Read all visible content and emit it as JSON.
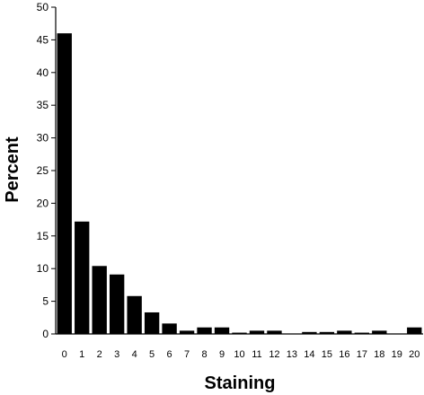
{
  "chart_data": {
    "type": "bar",
    "title": "",
    "xlabel": "Staining",
    "ylabel": "Percent",
    "ylim": [
      0,
      50
    ],
    "yticks": [
      "0",
      "5",
      "10",
      "15",
      "20",
      "25",
      "30",
      "35",
      "40",
      "45",
      "50"
    ],
    "categories": [
      "0",
      "1",
      "2",
      "3",
      "4",
      "5",
      "6",
      "7",
      "8",
      "9",
      "10",
      "11",
      "12",
      "13",
      "14",
      "15",
      "16",
      "17",
      "18",
      "19",
      "20"
    ],
    "values": [
      46.0,
      17.2,
      10.4,
      9.1,
      5.8,
      3.3,
      1.6,
      0.5,
      1.0,
      1.0,
      0.2,
      0.5,
      0.5,
      0,
      0.3,
      0.3,
      0.5,
      0.2,
      0.5,
      0,
      1.0
    ],
    "grid": false,
    "legend": "none",
    "bar_color": "#000000"
  }
}
